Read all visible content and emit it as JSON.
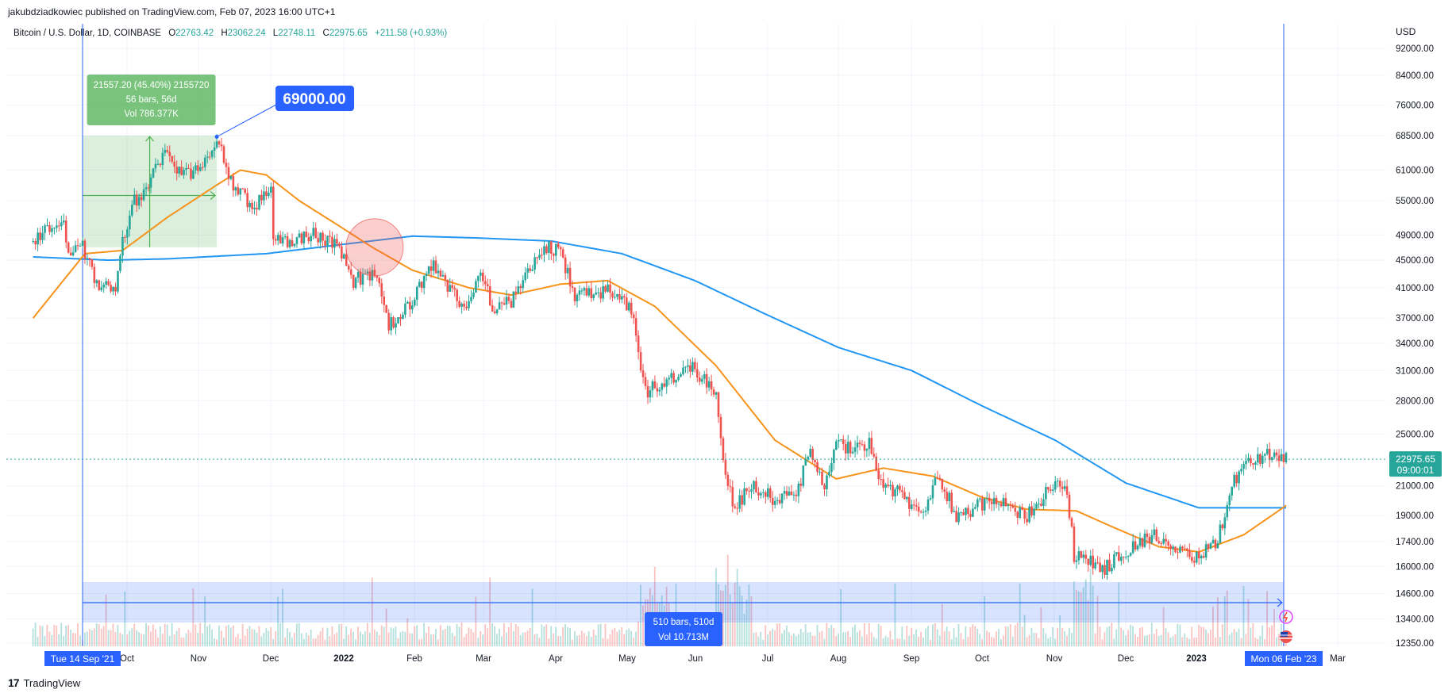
{
  "header": {
    "published_line": "jakubdziadkowiec published on TradingView.com, Feb 07, 2023 16:00 UTC+1"
  },
  "legend": {
    "symbol": "Bitcoin / U.S. Dollar, 1D, COINBASE",
    "o_label": "O",
    "o_value": "22763.42",
    "h_label": "H",
    "h_value": "23062.24",
    "l_label": "L",
    "l_value": "22748.11",
    "c_label": "C",
    "c_value": "22975.65",
    "change": "+211.58 (+0.93%)"
  },
  "footer": {
    "brand": "TradingView",
    "logo": "17"
  },
  "colors": {
    "bull": "#26a69a",
    "bear": "#ef5350",
    "ma_fast": "#f7931a",
    "ma_slow": "#2196f3",
    "measure_green": "#4caf50",
    "range_blue": "#2962ff",
    "price_badge": "#26a69a"
  },
  "chart_data": {
    "type": "candlestick",
    "title": "Bitcoin / U.S. Dollar, 1D, COINBASE",
    "y_axis_unit": "USD",
    "y_scale": "log",
    "ylim": [
      11900,
      105000
    ],
    "y_ticks": [
      "92000.00",
      "84000.00",
      "76000.00",
      "68500.00",
      "61000.00",
      "55000.00",
      "49000.00",
      "45000.00",
      "41000.00",
      "37000.00",
      "34000.00",
      "31000.00",
      "28000.00",
      "25000.00",
      "21000.00",
      "19000.00",
      "17400.00",
      "16000.00",
      "14600.00",
      "13400.00",
      "12350.00"
    ],
    "x_ticks": [
      "Oct",
      "Nov",
      "Dec",
      "2022",
      "Feb",
      "Mar",
      "Apr",
      "May",
      "Jun",
      "Jul",
      "Aug",
      "Sep",
      "Oct",
      "Nov",
      "Dec",
      "2023",
      "Mar"
    ],
    "x_ticks_bold": [
      "2022",
      "2023"
    ],
    "current_price": "22975.65",
    "countdown": "09:00:01",
    "price_anchors": [
      [
        "2021-08-24",
        48000
      ],
      [
        "2021-09-06",
        52000
      ],
      [
        "2021-09-08",
        46000
      ],
      [
        "2021-09-14",
        47000
      ],
      [
        "2021-09-21",
        41000
      ],
      [
        "2021-09-28",
        41500
      ],
      [
        "2021-10-01",
        48000
      ],
      [
        "2021-10-06",
        55000
      ],
      [
        "2021-10-10",
        56000
      ],
      [
        "2021-10-15",
        61500
      ],
      [
        "2021-10-20",
        65000
      ],
      [
        "2021-10-24",
        61000
      ],
      [
        "2021-10-28",
        60000
      ],
      [
        "2021-11-03",
        62000
      ],
      [
        "2021-11-08",
        66000
      ],
      [
        "2021-11-10",
        68000
      ],
      [
        "2021-11-12",
        64500
      ],
      [
        "2021-11-18",
        57000
      ],
      [
        "2021-11-26",
        54000
      ],
      [
        "2021-12-03",
        57000
      ],
      [
        "2021-12-04",
        49000
      ],
      [
        "2021-12-10",
        48000
      ],
      [
        "2021-12-21",
        49000
      ],
      [
        "2021-12-28",
        48000
      ],
      [
        "2022-01-01",
        47000
      ],
      [
        "2022-01-07",
        42000
      ],
      [
        "2022-01-13",
        43000
      ],
      [
        "2022-01-17",
        42000
      ],
      [
        "2022-01-22",
        36000
      ],
      [
        "2022-01-28",
        37500
      ],
      [
        "2022-02-05",
        41500
      ],
      [
        "2022-02-10",
        44000
      ],
      [
        "2022-02-14",
        42000
      ],
      [
        "2022-02-24",
        38000
      ],
      [
        "2022-03-02",
        44000
      ],
      [
        "2022-03-07",
        38500
      ],
      [
        "2022-03-15",
        39000
      ],
      [
        "2022-03-25",
        44500
      ],
      [
        "2022-03-29",
        47500
      ],
      [
        "2022-04-05",
        46000
      ],
      [
        "2022-04-11",
        40000
      ],
      [
        "2022-04-25",
        40500
      ],
      [
        "2022-05-05",
        38000
      ],
      [
        "2022-05-09",
        31000
      ],
      [
        "2022-05-12",
        29000
      ],
      [
        "2022-05-20",
        30000
      ],
      [
        "2022-05-30",
        31500
      ],
      [
        "2022-06-10",
        29000
      ],
      [
        "2022-06-13",
        22500
      ],
      [
        "2022-06-18",
        19500
      ],
      [
        "2022-06-25",
        21000
      ],
      [
        "2022-07-06",
        20000
      ],
      [
        "2022-07-14",
        20500
      ],
      [
        "2022-07-20",
        23500
      ],
      [
        "2022-07-26",
        21000
      ],
      [
        "2022-07-30",
        24000
      ],
      [
        "2022-08-10",
        24000
      ],
      [
        "2022-08-14",
        24500
      ],
      [
        "2022-08-19",
        21200
      ],
      [
        "2022-08-26",
        20500
      ],
      [
        "2022-09-06",
        19000
      ],
      [
        "2022-09-12",
        22000
      ],
      [
        "2022-09-20",
        19000
      ],
      [
        "2022-10-05",
        20000
      ],
      [
        "2022-10-20",
        19000
      ],
      [
        "2022-10-29",
        20700
      ],
      [
        "2022-11-05",
        21000
      ],
      [
        "2022-11-08",
        18500
      ],
      [
        "2022-11-09",
        16500
      ],
      [
        "2022-11-14",
        16500
      ],
      [
        "2022-11-21",
        15800
      ],
      [
        "2022-12-01",
        16900
      ],
      [
        "2022-12-14",
        17800
      ],
      [
        "2022-12-20",
        16800
      ],
      [
        "2022-12-31",
        16550
      ],
      [
        "2023-01-08",
        17200
      ],
      [
        "2023-01-12",
        18900
      ],
      [
        "2023-01-14",
        20800
      ],
      [
        "2023-01-21",
        22600
      ],
      [
        "2023-02-01",
        23500
      ],
      [
        "2023-02-06",
        22900
      ],
      [
        "2023-02-07",
        22975
      ]
    ],
    "ma50_anchors": [
      [
        "2021-08-24",
        37000
      ],
      [
        "2021-09-15",
        46000
      ],
      [
        "2021-10-01",
        46500
      ],
      [
        "2021-10-20",
        52000
      ],
      [
        "2021-11-10",
        58000
      ],
      [
        "2021-11-20",
        61000
      ],
      [
        "2021-12-01",
        60000
      ],
      [
        "2021-12-15",
        55000
      ],
      [
        "2022-01-01",
        50500
      ],
      [
        "2022-01-15",
        47000
      ],
      [
        "2022-02-01",
        43500
      ],
      [
        "2022-02-25",
        41000
      ],
      [
        "2022-03-15",
        40000
      ],
      [
        "2022-04-05",
        41500
      ],
      [
        "2022-04-25",
        42000
      ],
      [
        "2022-05-15",
        38500
      ],
      [
        "2022-06-10",
        31500
      ],
      [
        "2022-07-05",
        24500
      ],
      [
        "2022-07-31",
        21500
      ],
      [
        "2022-08-20",
        22300
      ],
      [
        "2022-09-10",
        21700
      ],
      [
        "2022-10-01",
        20200
      ],
      [
        "2022-10-20",
        19400
      ],
      [
        "2022-11-10",
        19300
      ],
      [
        "2022-11-25",
        18300
      ],
      [
        "2022-12-15",
        17100
      ],
      [
        "2023-01-01",
        16800
      ],
      [
        "2023-01-20",
        17800
      ],
      [
        "2023-02-07",
        19650
      ]
    ],
    "ma200_anchors": [
      [
        "2021-08-24",
        45500
      ],
      [
        "2021-09-25",
        45000
      ],
      [
        "2021-10-20",
        45200
      ],
      [
        "2021-12-01",
        46000
      ],
      [
        "2022-01-01",
        47400
      ],
      [
        "2022-02-01",
        48800
      ],
      [
        "2022-03-01",
        48500
      ],
      [
        "2022-04-01",
        48000
      ],
      [
        "2022-05-01",
        46000
      ],
      [
        "2022-06-01",
        42000
      ],
      [
        "2022-07-01",
        37500
      ],
      [
        "2022-08-01",
        33500
      ],
      [
        "2022-09-01",
        31000
      ],
      [
        "2022-10-01",
        27500
      ],
      [
        "2022-11-01",
        24500
      ],
      [
        "2022-12-01",
        21200
      ],
      [
        "2023-01-01",
        19500
      ],
      [
        "2023-02-07",
        19500
      ]
    ],
    "annotations": {
      "measure_box": {
        "from_date": "2021-09-14",
        "to_date": "2021-11-10",
        "low": 47000,
        "high": 68500
      },
      "measure_label": {
        "line1": "21557.20 (45.40%) 2155720",
        "line2": "56 bars, 56d",
        "line3": "Vol 786.377K"
      },
      "price_callout": {
        "text": "69000.00",
        "date": "2021-11-10",
        "price": 69000
      },
      "cross_circle": {
        "date": "2022-01-16",
        "price": 47000
      },
      "range_label": {
        "line1": "510 bars, 510d",
        "line2": "Vol 10.713M"
      },
      "start_date_label": "Tue 14 Sep '21",
      "end_date_label": "Mon 06 Feb '23"
    }
  }
}
